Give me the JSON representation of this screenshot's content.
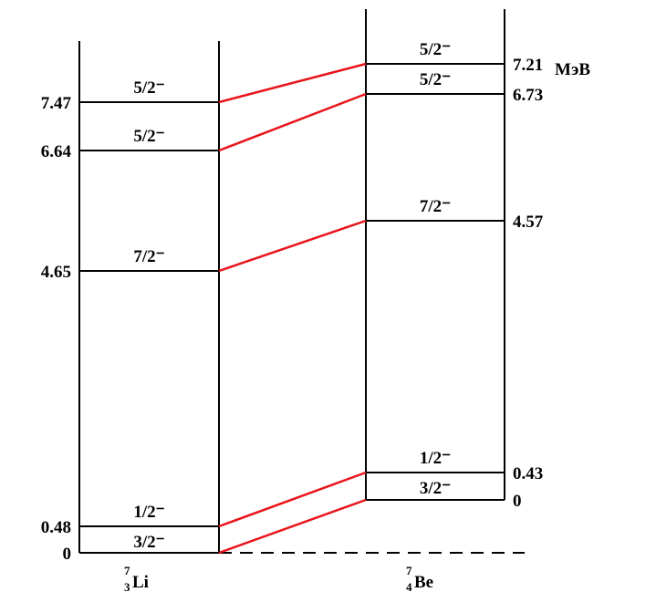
{
  "nuclei": [
    {
      "mass": "7",
      "charge": "3",
      "symbol": "Li",
      "levels": [
        {
          "energy": "7.47",
          "spin": "5/2⁻"
        },
        {
          "energy": "6.64",
          "spin": "5/2⁻"
        },
        {
          "energy": "4.65",
          "spin": "7/2⁻"
        },
        {
          "energy": "0.48",
          "spin": "1/2⁻"
        },
        {
          "energy": "0",
          "spin": "3/2⁻"
        }
      ]
    },
    {
      "mass": "7",
      "charge": "4",
      "symbol": "Be",
      "levels": [
        {
          "energy": "7.21",
          "spin": "5/2⁻"
        },
        {
          "energy": "6.73",
          "spin": "5/2⁻"
        },
        {
          "energy": "4.57",
          "spin": "7/2⁻"
        },
        {
          "energy": "0.43",
          "spin": "1/2⁻"
        },
        {
          "energy": "0",
          "spin": "3/2⁻"
        }
      ]
    }
  ],
  "unit": "МэВ"
}
